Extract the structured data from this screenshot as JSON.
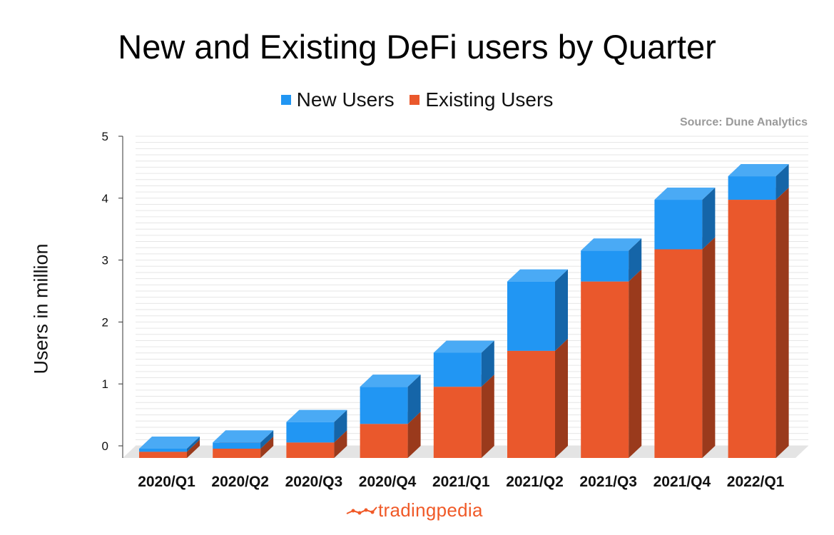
{
  "title": "New and Existing DeFi users by Quarter",
  "source": "Source: Dune Analytics",
  "brand": "tradingpedia",
  "colors": {
    "new_front": "#2196f3",
    "new_top": "#4aaaf5",
    "new_side": "#1565a8",
    "existing_front": "#ea582c",
    "existing_top": "#f07a50",
    "existing_side": "#9a3a1c",
    "brand": "#f05a28"
  },
  "chart_data": {
    "type": "bar",
    "stacked": true,
    "three_d": true,
    "categories": [
      "2020/Q1",
      "2020/Q2",
      "2020/Q3",
      "2020/Q4",
      "2021/Q1",
      "2021/Q2",
      "2021/Q3",
      "2021/Q4",
      "2022/Q1"
    ],
    "series": [
      {
        "name": "Existing Users",
        "values": [
          0.1,
          0.15,
          0.25,
          0.55,
          1.15,
          1.73,
          2.85,
          3.37,
          4.17
        ]
      },
      {
        "name": "New Users",
        "values": [
          0.05,
          0.1,
          0.33,
          0.6,
          0.55,
          1.12,
          0.5,
          0.8,
          0.38
        ]
      }
    ],
    "ylabel": "Users in million",
    "xlabel": "",
    "ylim": [
      0,
      5
    ],
    "yticks": [
      "0",
      "1",
      "2",
      "3",
      "4",
      "5"
    ],
    "legend_position": "top-center",
    "grid": true
  }
}
